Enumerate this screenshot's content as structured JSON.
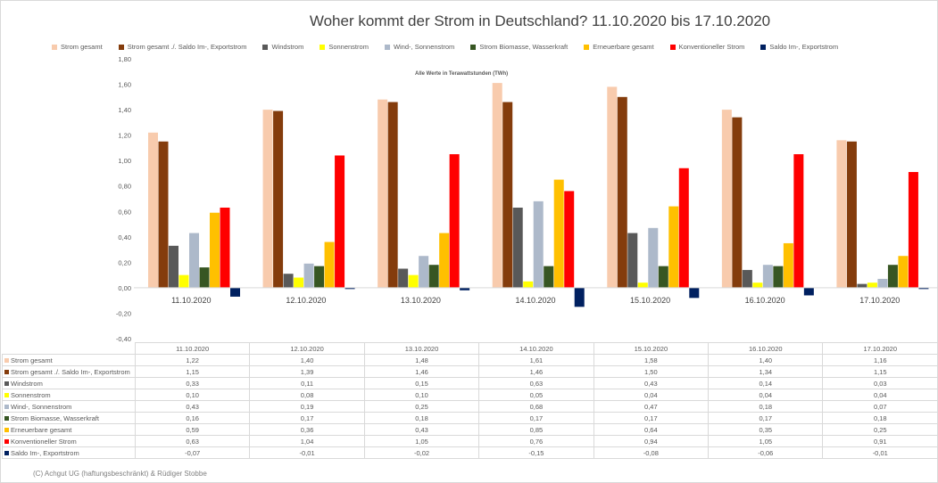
{
  "chart_data": {
    "type": "bar",
    "title": "Woher kommt der Strom in Deutschland? 11.10.2020 bis 17.10.2020",
    "subtitle": "Alle Werte in Terawattstunden (TWh)",
    "ylim": [
      -0.4,
      1.8
    ],
    "yticks": [
      "1,80",
      "1,60",
      "1,40",
      "1,20",
      "1,00",
      "0,80",
      "0,60",
      "0,40",
      "0,20",
      "0,00",
      "-0,20",
      "-0,40"
    ],
    "ytick_values": [
      1.8,
      1.6,
      1.4,
      1.2,
      1.0,
      0.8,
      0.6,
      0.4,
      0.2,
      0,
      -0.2,
      -0.4
    ],
    "categories": [
      "11.10.2020",
      "12.10.2020",
      "13.10.2020",
      "14.10.2020",
      "15.10.2020",
      "16.10.2020",
      "17.10.2020"
    ],
    "legend_position": "top",
    "series": [
      {
        "name": "Strom gesamt",
        "color": "#f8cbad",
        "values": [
          1.22,
          1.4,
          1.48,
          1.61,
          1.58,
          1.4,
          1.16
        ],
        "labels": [
          "1,22",
          "1,40",
          "1,48",
          "1,61",
          "1,58",
          "1,40",
          "1,16"
        ]
      },
      {
        "name": "Strom gesamt ./. Saldo Im-, Exportstrom",
        "color": "#843c0c",
        "values": [
          1.15,
          1.39,
          1.46,
          1.46,
          1.5,
          1.34,
          1.15
        ],
        "labels": [
          "1,15",
          "1,39",
          "1,46",
          "1,46",
          "1,50",
          "1,34",
          "1,15"
        ]
      },
      {
        "name": "Windstrom",
        "color": "#595959",
        "values": [
          0.33,
          0.11,
          0.15,
          0.63,
          0.43,
          0.14,
          0.03
        ],
        "labels": [
          "0,33",
          "0,11",
          "0,15",
          "0,63",
          "0,43",
          "0,14",
          "0,03"
        ]
      },
      {
        "name": "Sonnenstrom",
        "color": "#ffff00",
        "values": [
          0.1,
          0.08,
          0.1,
          0.05,
          0.04,
          0.04,
          0.04
        ],
        "labels": [
          "0,10",
          "0,08",
          "0,10",
          "0,05",
          "0,04",
          "0,04",
          "0,04"
        ]
      },
      {
        "name": "Wind-, Sonnenstrom",
        "color": "#adb9ca",
        "values": [
          0.43,
          0.19,
          0.25,
          0.68,
          0.47,
          0.18,
          0.07
        ],
        "labels": [
          "0,43",
          "0,19",
          "0,25",
          "0,68",
          "0,47",
          "0,18",
          "0,07"
        ]
      },
      {
        "name": "Strom Biomasse, Wasserkraft",
        "color": "#375623",
        "values": [
          0.16,
          0.17,
          0.18,
          0.17,
          0.17,
          0.17,
          0.18
        ],
        "labels": [
          "0,16",
          "0,17",
          "0,18",
          "0,17",
          "0,17",
          "0,17",
          "0,18"
        ]
      },
      {
        "name": "Erneuerbare gesamt",
        "color": "#ffc000",
        "values": [
          0.59,
          0.36,
          0.43,
          0.85,
          0.64,
          0.35,
          0.25
        ],
        "labels": [
          "0,59",
          "0,36",
          "0,43",
          "0,85",
          "0,64",
          "0,35",
          "0,25"
        ]
      },
      {
        "name": "Konventioneller Strom",
        "color": "#ff0000",
        "values": [
          0.63,
          1.04,
          1.05,
          0.76,
          0.94,
          1.05,
          0.91
        ],
        "labels": [
          "0,63",
          "1,04",
          "1,05",
          "0,76",
          "0,94",
          "1,05",
          "0,91"
        ]
      },
      {
        "name": "Saldo Im-, Exportstrom",
        "color": "#002060",
        "values": [
          -0.07,
          -0.01,
          -0.02,
          -0.15,
          -0.08,
          -0.06,
          -0.01
        ],
        "labels": [
          "-0,07",
          "-0,01",
          "-0,02",
          "-0,15",
          "-0,08",
          "-0,06",
          "-0,01"
        ]
      }
    ]
  },
  "copyright": "(C) Achgut UG (haftungsbeschränkt) & Rüdiger Stobbe"
}
